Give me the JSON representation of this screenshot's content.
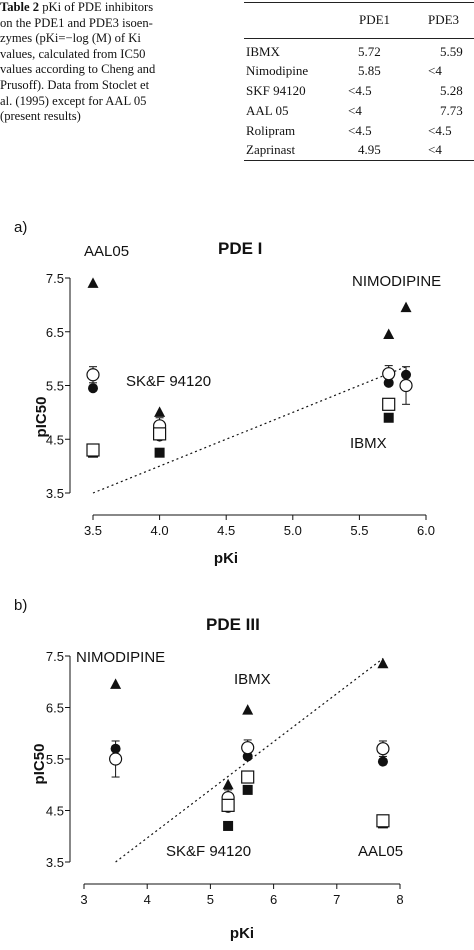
{
  "table_caption": {
    "label": "Table 2",
    "lines": [
      "pKi of PDE inhibitors",
      "on the PDE1 and PDE3 isoen-",
      "zymes (pKi=−log (M) of Ki",
      "values, calculated from IC50",
      "values according to Cheng and",
      "Prusoff). Data from Stoclet et",
      "al. (1995) except for AAL 05",
      "(present results)"
    ]
  },
  "table": {
    "headers": [
      "",
      "PDE1",
      "PDE3"
    ],
    "rows": [
      [
        "IBMX",
        "5.72",
        "5.59"
      ],
      [
        "Nimodipine",
        "5.85",
        "<4"
      ],
      [
        "SKF 94120",
        "<4.5",
        "5.28"
      ],
      [
        "AAL 05",
        "<4",
        "7.73"
      ],
      [
        "Rolipram",
        "<4.5",
        "<4.5"
      ],
      [
        "Zaprinast",
        "4.95",
        "<4"
      ]
    ]
  },
  "colors": {
    "ink": "#111111",
    "background": "#ffffff"
  },
  "chart_data": [
    {
      "panel_label": "a)",
      "type": "scatter",
      "title": "PDE I",
      "xlabel": "pKi",
      "ylabel": "pIC50",
      "xlim": [
        3.5,
        6.0
      ],
      "ylim": [
        3.5,
        7.5
      ],
      "xticks": [
        "3.5",
        "4.0",
        "4.5",
        "5.0",
        "5.5",
        "6.0"
      ],
      "yticks": [
        "3.5",
        "4.5",
        "5.5",
        "6.5",
        "7.5"
      ],
      "annotations": [
        "AAL05",
        "SK&F 94120",
        "NIMODIPINE",
        "IBMX"
      ],
      "identity_line": {
        "x": [
          3.5,
          5.85
        ],
        "y": [
          3.5,
          5.85
        ],
        "style": "dotted"
      },
      "series": [
        {
          "marker": "filled-triangle",
          "points": [
            {
              "x": 3.5,
              "y": 7.4
            },
            {
              "x": 4.0,
              "y": 5.0
            },
            {
              "x": 5.72,
              "y": 6.45
            },
            {
              "x": 5.85,
              "y": 6.95
            }
          ]
        },
        {
          "marker": "filled-circle",
          "points": [
            {
              "x": 3.5,
              "y": 5.45
            },
            {
              "x": 4.0,
              "y": 4.55
            },
            {
              "x": 5.72,
              "y": 5.55
            },
            {
              "x": 5.85,
              "y": 5.7
            }
          ]
        },
        {
          "marker": "open-circle",
          "error_bars": true,
          "points": [
            {
              "x": 3.5,
              "y": 5.7,
              "err": 0.15
            },
            {
              "x": 4.0,
              "y": 4.75,
              "err": 0.15
            },
            {
              "x": 5.72,
              "y": 5.72,
              "err": 0.15
            },
            {
              "x": 5.85,
              "y": 5.5,
              "err": 0.35
            }
          ]
        },
        {
          "marker": "filled-square",
          "points": [
            {
              "x": 3.5,
              "y": 4.25
            },
            {
              "x": 4.0,
              "y": 4.25
            },
            {
              "x": 5.72,
              "y": 4.9
            }
          ]
        },
        {
          "marker": "open-square",
          "points": [
            {
              "x": 3.5,
              "y": 4.3
            },
            {
              "x": 4.0,
              "y": 4.6
            },
            {
              "x": 5.72,
              "y": 5.15
            }
          ]
        }
      ]
    },
    {
      "panel_label": "b)",
      "type": "scatter",
      "title": "PDE III",
      "xlabel": "pKi",
      "ylabel": "pIC50",
      "xlim": [
        3,
        8
      ],
      "ylim": [
        3.5,
        7.5
      ],
      "xticks": [
        "3",
        "4",
        "5",
        "6",
        "7",
        "8"
      ],
      "yticks": [
        "3.5",
        "4.5",
        "5.5",
        "6.5",
        "7.5"
      ],
      "annotations": [
        "NIMODIPINE",
        "IBMX",
        "SK&F 94120",
        "AAL05"
      ],
      "identity_line": {
        "x": [
          3.5,
          7.73
        ],
        "y": [
          3.5,
          7.45
        ],
        "style": "dotted"
      },
      "series": [
        {
          "marker": "filled-triangle",
          "points": [
            {
              "x": 3.5,
              "y": 6.95
            },
            {
              "x": 5.28,
              "y": 5.0
            },
            {
              "x": 5.59,
              "y": 6.45
            },
            {
              "x": 7.73,
              "y": 7.35
            }
          ]
        },
        {
          "marker": "filled-circle",
          "points": [
            {
              "x": 3.5,
              "y": 5.7
            },
            {
              "x": 5.28,
              "y": 4.55
            },
            {
              "x": 5.59,
              "y": 5.55
            },
            {
              "x": 7.73,
              "y": 5.45
            }
          ]
        },
        {
          "marker": "open-circle",
          "error_bars": true,
          "points": [
            {
              "x": 3.5,
              "y": 5.5,
              "err": 0.35
            },
            {
              "x": 5.28,
              "y": 4.75,
              "err": 0.15
            },
            {
              "x": 5.59,
              "y": 5.72,
              "err": 0.15
            },
            {
              "x": 7.73,
              "y": 5.7,
              "err": 0.15
            }
          ]
        },
        {
          "marker": "filled-square",
          "points": [
            {
              "x": 5.28,
              "y": 4.2
            },
            {
              "x": 5.59,
              "y": 4.9
            },
            {
              "x": 7.73,
              "y": 4.25
            }
          ]
        },
        {
          "marker": "open-square",
          "points": [
            {
              "x": 5.28,
              "y": 4.6
            },
            {
              "x": 5.59,
              "y": 5.15
            },
            {
              "x": 7.73,
              "y": 4.3
            }
          ]
        }
      ]
    }
  ]
}
